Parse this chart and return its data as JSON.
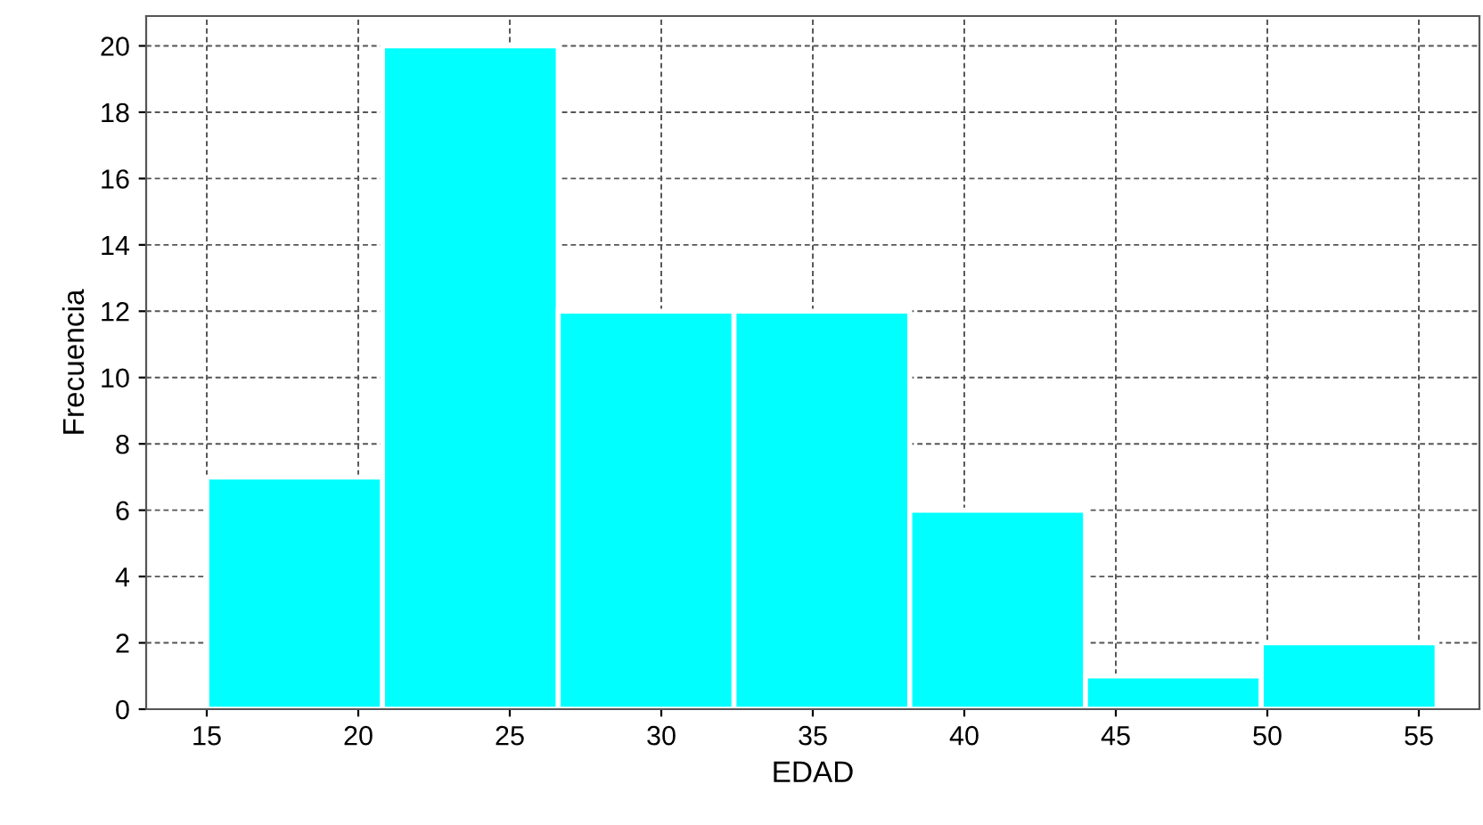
{
  "chart_data": {
    "type": "histogram",
    "xlabel": "EDAD",
    "ylabel": "Frecuencia",
    "bins": [
      15,
      20.8,
      26.6,
      32.4,
      38.2,
      44,
      49.8,
      55.6
    ],
    "values": [
      7,
      20,
      12,
      12,
      6,
      1,
      2
    ],
    "color": "#00ffff",
    "xlim": [
      13,
      57
    ],
    "ylim": [
      0,
      20.9
    ],
    "xticks": [
      15,
      20,
      25,
      30,
      35,
      40,
      45,
      50,
      55
    ],
    "yticks": [
      0,
      2,
      4,
      6,
      8,
      10,
      12,
      14,
      16,
      18,
      20
    ],
    "grid": true
  }
}
